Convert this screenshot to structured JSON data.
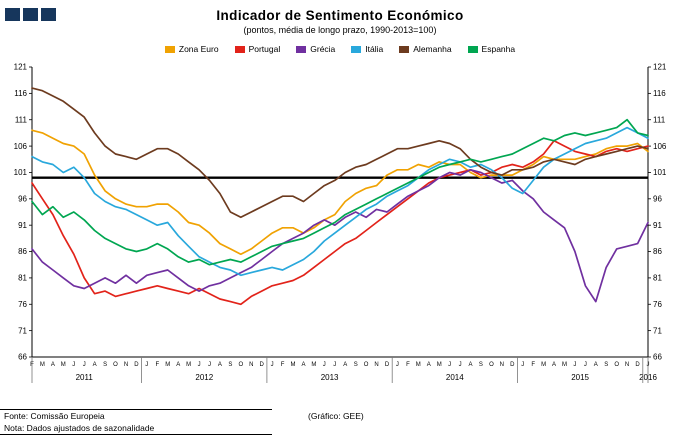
{
  "header": {
    "title": "Indicador de Sentimento Económico",
    "subtitle": "(pontos, média de longo prazo, 1990-2013=100)"
  },
  "logo": {
    "square_color": "#16365C",
    "square_count": 3
  },
  "footer": {
    "source": "Fonte: Comissão Europeia",
    "note": "Nota: Dados ajustados de sazonalidade",
    "credit": "(Gráfico: GEE)"
  },
  "chart_data": {
    "type": "line",
    "title": "Indicador de Sentimento Económico",
    "subtitle": "(pontos, média de longo prazo, 1990-2013=100)",
    "ylim": [
      66,
      121
    ],
    "ytick_step": 5,
    "baseline": 100,
    "grid": false,
    "legend_position": "top",
    "x_months": [
      "F",
      "M",
      "A",
      "M",
      "J",
      "J",
      "A",
      "S",
      "O",
      "N",
      "D",
      "J",
      "F",
      "M",
      "A",
      "M",
      "J",
      "J",
      "A",
      "S",
      "O",
      "N",
      "D",
      "J",
      "F",
      "M",
      "A",
      "M",
      "J",
      "J",
      "A",
      "S",
      "O",
      "N",
      "D",
      "J",
      "F",
      "M",
      "A",
      "M",
      "J",
      "J",
      "A",
      "S",
      "O",
      "N",
      "D",
      "J",
      "F",
      "M",
      "A",
      "M",
      "J",
      "J",
      "A",
      "S",
      "O",
      "N",
      "D",
      "J"
    ],
    "years": [
      {
        "label": "2011",
        "start": 0,
        "end": 10
      },
      {
        "label": "2012",
        "start": 11,
        "end": 22
      },
      {
        "label": "2013",
        "start": 23,
        "end": 34
      },
      {
        "label": "2014",
        "start": 35,
        "end": 46
      },
      {
        "label": "2015",
        "start": 47,
        "end": 58
      },
      {
        "label": "2016",
        "start": 59,
        "end": 59
      }
    ],
    "series": [
      {
        "name": "Zona Euro",
        "color": "#F0A202",
        "values": [
          109,
          108.5,
          107.5,
          106.5,
          106,
          104.5,
          100.5,
          97.5,
          96,
          95,
          94.5,
          94.5,
          95,
          95,
          93.5,
          91.5,
          91,
          89.5,
          87.5,
          86.5,
          85.5,
          86.5,
          88,
          89.5,
          90.5,
          90.5,
          89.5,
          90.5,
          92,
          93,
          95.5,
          97,
          98,
          98.5,
          100.5,
          101.5,
          101.5,
          102.5,
          102,
          103,
          102.5,
          102.5,
          101,
          100,
          100.5,
          100.5,
          100.5,
          101.5,
          102.5,
          104,
          103.5,
          103.5,
          103.5,
          104,
          104.5,
          105.5,
          106,
          106,
          106.5,
          105
        ]
      },
      {
        "name": "Portugal",
        "color": "#E2231A",
        "values": [
          99,
          96,
          93,
          89,
          85.5,
          81,
          78,
          78.5,
          77.5,
          78,
          78.5,
          79,
          79.5,
          79,
          78.5,
          78,
          79,
          78,
          77,
          76.5,
          76,
          77.5,
          78.5,
          79.5,
          80,
          80.5,
          81.5,
          83,
          84.5,
          86,
          87.5,
          88.5,
          90,
          91.5,
          93,
          94.5,
          96,
          97.5,
          99,
          100,
          100.5,
          101,
          101.5,
          100.5,
          101,
          102,
          102.5,
          102,
          103,
          104.5,
          107,
          106,
          105,
          104.5,
          104,
          105,
          105.5,
          105,
          105.5,
          106
        ]
      },
      {
        "name": "Grécia",
        "color": "#7030A0",
        "values": [
          86.5,
          84,
          82.5,
          81,
          79.5,
          79,
          80,
          81,
          80,
          81.5,
          80,
          81.5,
          82,
          82.5,
          81,
          79.5,
          78.5,
          79.5,
          80,
          81,
          82,
          83,
          84.5,
          86,
          87.5,
          88.5,
          89.5,
          91,
          92,
          91,
          92.5,
          93.5,
          92.5,
          94,
          93.5,
          95,
          96.5,
          97.5,
          98.5,
          100,
          101,
          100.5,
          101.5,
          101,
          100,
          99,
          99.5,
          97.5,
          96,
          93.5,
          92,
          90.5,
          86,
          79.5,
          76.5,
          83,
          86.5,
          87,
          87.5,
          91.5
        ]
      },
      {
        "name": "Itália",
        "color": "#29A8DC",
        "values": [
          104,
          103,
          102.5,
          101,
          102,
          100,
          97,
          95.5,
          94.5,
          94,
          93,
          92,
          91,
          91.5,
          89,
          87,
          85,
          84,
          83,
          82.5,
          81.5,
          82,
          82.5,
          83,
          82.5,
          83.5,
          84.5,
          86,
          88,
          89.5,
          91,
          92.5,
          94,
          95,
          96.5,
          97.5,
          98.5,
          100,
          101.5,
          102.5,
          103.5,
          103,
          102,
          102.5,
          101.5,
          100,
          98,
          97,
          99.5,
          102,
          103.5,
          104.5,
          105.5,
          106.5,
          107,
          107.5,
          108.5,
          109.5,
          108.5,
          107.5
        ]
      },
      {
        "name": "Alemanha",
        "color": "#6D3B1F",
        "values": [
          117,
          116.5,
          115.5,
          114.5,
          113,
          111.5,
          108.5,
          106,
          104.5,
          104,
          103.5,
          104.5,
          105.5,
          105.5,
          104.5,
          103,
          101.5,
          99.5,
          97,
          93.5,
          92.5,
          93.5,
          94.5,
          95.5,
          96.5,
          96.5,
          95.5,
          97,
          98.5,
          99.5,
          101,
          102,
          102.5,
          103.5,
          104.5,
          105.5,
          105.5,
          106,
          106.5,
          107,
          106.5,
          105.5,
          103.5,
          102,
          101,
          100.5,
          101.5,
          101.5,
          102,
          103,
          103.5,
          103,
          102.5,
          103.5,
          104,
          104.5,
          105,
          105.5,
          106,
          105.5
        ]
      },
      {
        "name": "Espanha",
        "color": "#00A651",
        "values": [
          95.5,
          93,
          94.5,
          92.5,
          93.5,
          92,
          90,
          88.5,
          87.5,
          86.5,
          86,
          86.5,
          87.5,
          86.5,
          85,
          84,
          84.5,
          83.5,
          84,
          84.5,
          84,
          85,
          86,
          87,
          87.5,
          88,
          88.5,
          89.5,
          90.5,
          91.5,
          93,
          94,
          95,
          96,
          97,
          98,
          99,
          100,
          101,
          102,
          102.5,
          103,
          103.5,
          103,
          103.5,
          104,
          104.5,
          105.5,
          106.5,
          107.5,
          107,
          108,
          108.5,
          108,
          108.5,
          109,
          109.5,
          111,
          108.5,
          108
        ]
      }
    ]
  }
}
